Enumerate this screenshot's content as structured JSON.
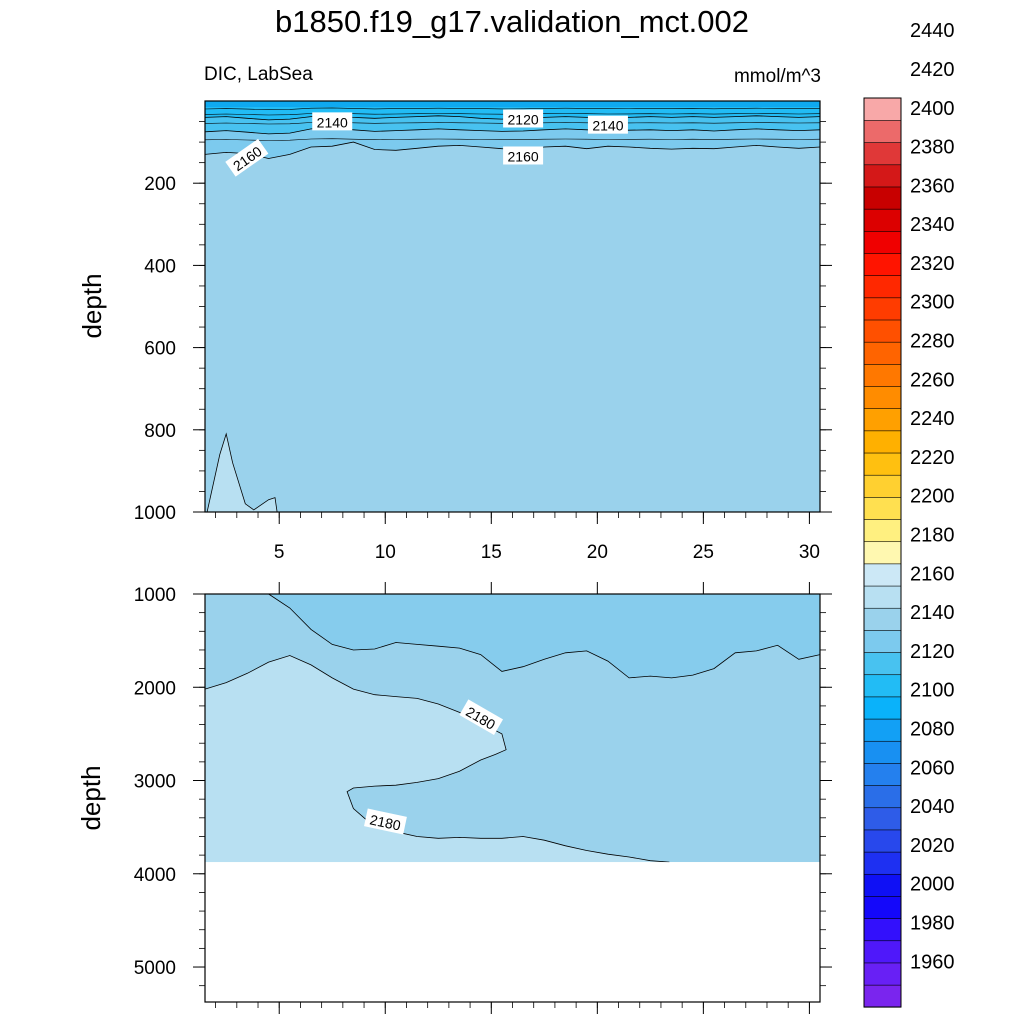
{
  "title": "b1850.f19_g17.validation_mct.002",
  "panel_top": {
    "left_label": "DIC, LabSea",
    "right_label": "mmol/m^3"
  },
  "colors": {
    "c2120_2140": "#0fa9f0",
    "c2140_2160": "#7ccaee",
    "c2160_2180": "#9ad2ec",
    "c2180_2200": "#b8e0f2",
    "missing": "#ffffff"
  },
  "chart_data": [
    {
      "type": "contour",
      "variable": "DIC",
      "region": "LabSea",
      "units": "mmol/m^3",
      "xlabel": "",
      "ylabel": "depth",
      "xlim": [
        1.5,
        30.5
      ],
      "ylim": [
        1000,
        0
      ],
      "x_ticks": [
        "5",
        "10",
        "15",
        "20",
        "25",
        "30"
      ],
      "y_ticks": [
        "200",
        "400",
        "600",
        "800",
        "1000"
      ],
      "contour_labels": [
        "2140",
        "2120",
        "2140",
        "2160",
        "2160"
      ],
      "contours": [
        {
          "level": 2160,
          "points": [
            [
              1.5,
              130
            ],
            [
              2.5,
              125
            ],
            [
              3.5,
              128
            ],
            [
              4.5,
              140
            ],
            [
              5.5,
              130
            ],
            [
              6.5,
              112
            ],
            [
              7.5,
              110
            ],
            [
              8.5,
              100
            ],
            [
              9.5,
              118
            ],
            [
              10.5,
              120
            ],
            [
              11.5,
              115
            ],
            [
              12.5,
              110
            ],
            [
              13.5,
              108
            ],
            [
              14.5,
              112
            ],
            [
              15.5,
              116
            ],
            [
              16.5,
              118
            ],
            [
              17.5,
              112
            ],
            [
              18.5,
              110
            ],
            [
              19.5,
              116
            ],
            [
              20.5,
              110
            ],
            [
              21.5,
              112
            ],
            [
              22.5,
              115
            ],
            [
              23.5,
              117
            ],
            [
              24.5,
              115
            ],
            [
              25.5,
              116
            ],
            [
              26.5,
              112
            ],
            [
              27.5,
              108
            ],
            [
              28.5,
              112
            ],
            [
              29.5,
              115
            ],
            [
              30.5,
              112
            ]
          ]
        },
        {
          "level": 2140,
          "points": [
            [
              1.5,
              75
            ],
            [
              2.5,
              72
            ],
            [
              3.5,
              76
            ],
            [
              4.5,
              80
            ],
            [
              5.5,
              78
            ],
            [
              6.5,
              68
            ],
            [
              7.5,
              66
            ],
            [
              8.5,
              70
            ],
            [
              9.5,
              74
            ],
            [
              10.5,
              72
            ],
            [
              11.5,
              70
            ],
            [
              12.5,
              68
            ],
            [
              13.5,
              70
            ],
            [
              14.5,
              72
            ],
            [
              15.5,
              74
            ],
            [
              16.5,
              73
            ],
            [
              17.5,
              70
            ],
            [
              18.5,
              68
            ],
            [
              19.5,
              70
            ],
            [
              20.5,
              72
            ],
            [
              21.5,
              71
            ],
            [
              22.5,
              70
            ],
            [
              23.5,
              72
            ],
            [
              24.5,
              70
            ],
            [
              25.5,
              73
            ],
            [
              26.5,
              70
            ],
            [
              27.5,
              68
            ],
            [
              28.5,
              70
            ],
            [
              29.5,
              72
            ],
            [
              30.5,
              70
            ]
          ]
        },
        {
          "level": 2120,
          "points": [
            [
              1.5,
              40
            ],
            [
              2.5,
              38
            ],
            [
              3.5,
              42
            ],
            [
              4.5,
              46
            ],
            [
              5.5,
              44
            ],
            [
              6.5,
              38
            ],
            [
              7.5,
              36
            ],
            [
              8.5,
              40
            ],
            [
              9.5,
              42
            ],
            [
              10.5,
              40
            ],
            [
              11.5,
              38
            ],
            [
              12.5,
              36
            ],
            [
              13.5,
              38
            ],
            [
              14.5,
              42
            ],
            [
              15.5,
              44
            ],
            [
              16.5,
              42
            ],
            [
              17.5,
              40
            ],
            [
              18.5,
              38
            ],
            [
              19.5,
              40
            ],
            [
              20.5,
              42
            ],
            [
              21.5,
              40
            ],
            [
              22.5,
              38
            ],
            [
              23.5,
              40
            ],
            [
              24.5,
              38
            ],
            [
              25.5,
              40
            ],
            [
              26.5,
              38
            ],
            [
              27.5,
              36
            ],
            [
              28.5,
              38
            ],
            [
              29.5,
              40
            ],
            [
              30.5,
              38
            ]
          ]
        },
        {
          "level": 2180,
          "points": [
            [
              1.6,
              1000
            ],
            [
              2.2,
              860
            ],
            [
              2.5,
              810
            ],
            [
              2.8,
              880
            ],
            [
              3.4,
              980
            ],
            [
              3.8,
              995
            ],
            [
              4.5,
              970
            ],
            [
              4.8,
              965
            ],
            [
              4.9,
              1000
            ]
          ]
        }
      ]
    },
    {
      "type": "contour",
      "variable": "DIC",
      "region": "LabSea",
      "units": "mmol/m^3",
      "xlabel": "",
      "ylabel": "depth",
      "xlim": [
        1.5,
        30.5
      ],
      "ylim": [
        5375,
        1000
      ],
      "y_ticks": [
        "1000",
        "2000",
        "3000",
        "4000",
        "5000"
      ],
      "valid_bottom_depth": 3875,
      "contour_labels": [
        "2180",
        "2180"
      ],
      "contours": [
        {
          "level": 2160,
          "points": [
            [
              4.5,
              1000
            ],
            [
              5.5,
              1150
            ],
            [
              6.5,
              1380
            ],
            [
              7.5,
              1540
            ],
            [
              8.5,
              1600
            ],
            [
              9.5,
              1590
            ],
            [
              10.5,
              1520
            ],
            [
              11.5,
              1540
            ],
            [
              12.5,
              1560
            ],
            [
              13.5,
              1580
            ],
            [
              14.5,
              1650
            ],
            [
              15.5,
              1830
            ],
            [
              16.5,
              1780
            ],
            [
              17.5,
              1700
            ],
            [
              18.5,
              1630
            ],
            [
              19.5,
              1610
            ],
            [
              20.5,
              1720
            ],
            [
              21.5,
              1900
            ],
            [
              22.5,
              1880
            ],
            [
              23.5,
              1900
            ],
            [
              24.5,
              1870
            ],
            [
              25.5,
              1800
            ],
            [
              26.5,
              1630
            ],
            [
              27.5,
              1610
            ],
            [
              28.5,
              1550
            ],
            [
              29.5,
              1700
            ],
            [
              30.5,
              1650
            ]
          ]
        },
        {
          "level": 2180,
          "points": [
            [
              1.5,
              2020
            ],
            [
              2.5,
              1950
            ],
            [
              3.5,
              1850
            ],
            [
              4.5,
              1730
            ],
            [
              5.5,
              1660
            ],
            [
              6.5,
              1760
            ],
            [
              7.5,
              1900
            ],
            [
              8.5,
              2020
            ],
            [
              9.5,
              2080
            ],
            [
              10.5,
              2100
            ],
            [
              11.5,
              2120
            ],
            [
              12.5,
              2180
            ],
            [
              13.5,
              2270
            ],
            [
              14.5,
              2380
            ],
            [
              15.5,
              2500
            ],
            [
              15.7,
              2670
            ],
            [
              15.2,
              2720
            ],
            [
              14.5,
              2780
            ],
            [
              13.5,
              2900
            ],
            [
              12.5,
              2980
            ],
            [
              11.5,
              3020
            ],
            [
              10.5,
              3050
            ],
            [
              9.5,
              3060
            ],
            [
              8.5,
              3080
            ],
            [
              8.2,
              3120
            ],
            [
              8.5,
              3300
            ],
            [
              9.5,
              3500
            ],
            [
              10.5,
              3550
            ],
            [
              11.5,
              3600
            ],
            [
              12.5,
              3620
            ],
            [
              13.5,
              3610
            ],
            [
              14.5,
              3620
            ],
            [
              15.5,
              3620
            ],
            [
              16.5,
              3600
            ],
            [
              17.5,
              3640
            ],
            [
              18.5,
              3700
            ],
            [
              19.5,
              3750
            ],
            [
              20.5,
              3790
            ],
            [
              21.5,
              3820
            ],
            [
              22.5,
              3860
            ],
            [
              23.4,
              3875
            ]
          ]
        }
      ]
    },
    {
      "type": "colorbar",
      "levels": [
        "1960",
        "1980",
        "2000",
        "2020",
        "2040",
        "2060",
        "2080",
        "2100",
        "2120",
        "2140",
        "2160",
        "2180",
        "2200",
        "2220",
        "2240",
        "2260",
        "2280",
        "2300",
        "2320",
        "2340",
        "2360",
        "2380",
        "2400",
        "2420",
        "2440"
      ],
      "box_colors": [
        "#7a25ee",
        "#6820f5",
        "#4f18fa",
        "#3310fc",
        "#1408fa",
        "#0f10f5",
        "#1e30f2",
        "#2848ec",
        "#2e5ce8",
        "#2a6ee8",
        "#2480ee",
        "#1890f2",
        "#12a0f5",
        "#0ab2fa",
        "#22bcf5",
        "#48c2f0",
        "#7ccaee",
        "#9ad2ec",
        "#b8e0f2",
        "#cce8f6",
        "#fff8b0",
        "#fff080",
        "#ffe050",
        "#ffd030",
        "#ffc010",
        "#ffb000",
        "#ffa000",
        "#ff8c00",
        "#ff7800",
        "#ff6400",
        "#ff5000",
        "#ff3c00",
        "#ff2800",
        "#ff1400",
        "#f00000",
        "#dc0000",
        "#c80000",
        "#d41818",
        "#e03838",
        "#ec6a6a",
        "#f8a8a8"
      ]
    }
  ]
}
